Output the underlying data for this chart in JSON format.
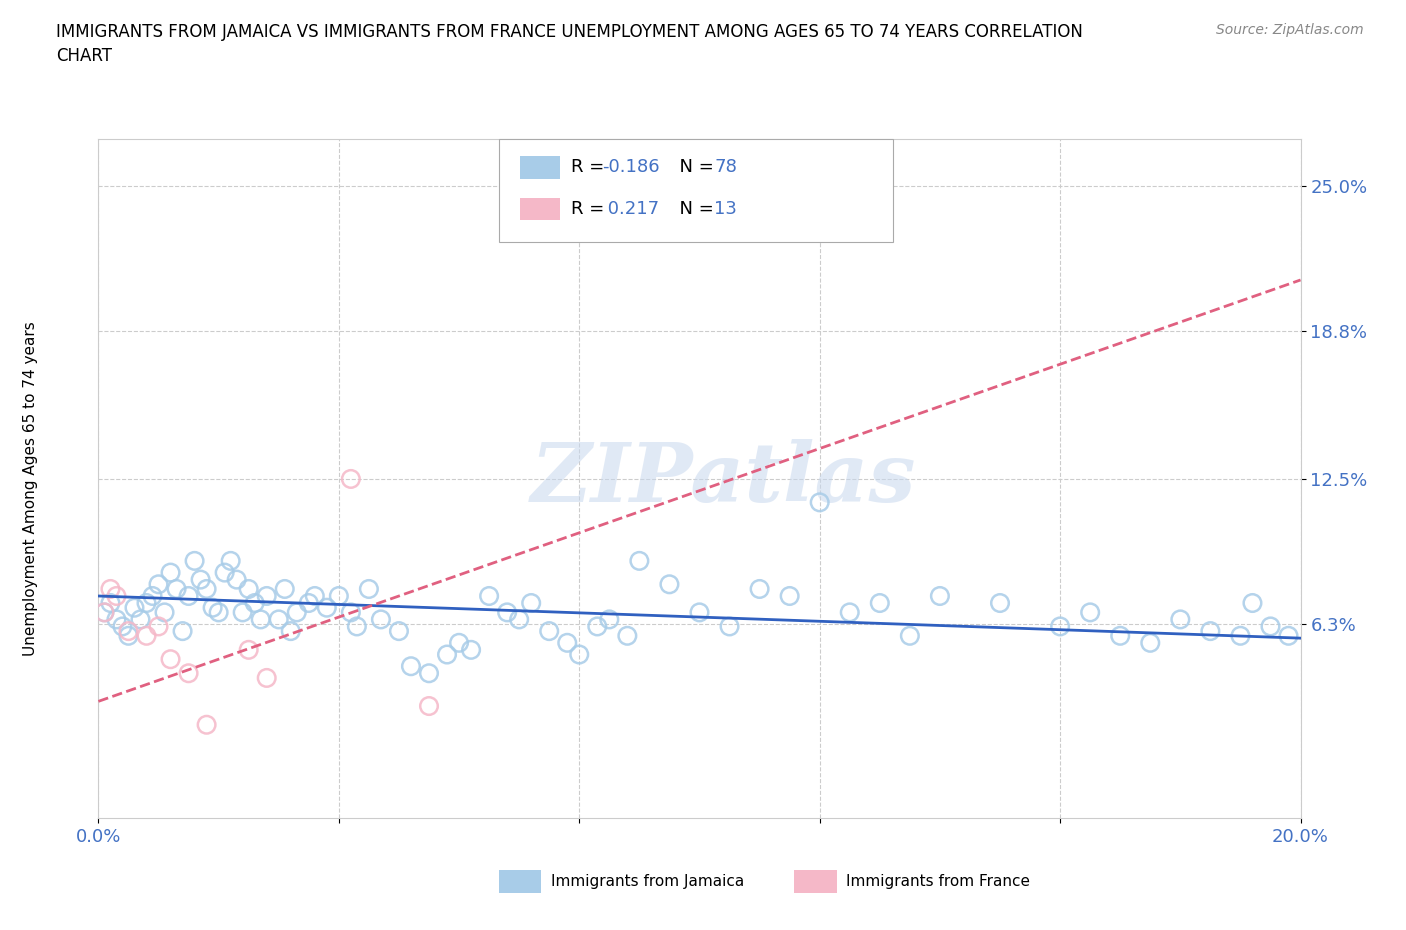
{
  "title": "IMMIGRANTS FROM JAMAICA VS IMMIGRANTS FROM FRANCE UNEMPLOYMENT AMONG AGES 65 TO 74 YEARS CORRELATION\nCHART",
  "source": "Source: ZipAtlas.com",
  "ylabel": "Unemployment Among Ages 65 to 74 years",
  "xlim": [
    0.0,
    0.2
  ],
  "ylim": [
    -0.02,
    0.27
  ],
  "xticks": [
    0.0,
    0.04,
    0.08,
    0.12,
    0.16,
    0.2
  ],
  "xtick_labels": [
    "0.0%",
    "",
    "",
    "",
    "",
    "20.0%"
  ],
  "ytick_labels": [
    "6.3%",
    "12.5%",
    "18.8%",
    "25.0%"
  ],
  "ytick_vals": [
    0.063,
    0.125,
    0.188,
    0.25
  ],
  "jamaica_color": "#a8cce8",
  "france_color": "#f5b8c8",
  "jamaica_line_color": "#3060c0",
  "france_line_color": "#e06080",
  "R_jamaica": -0.186,
  "N_jamaica": 78,
  "R_france": 0.217,
  "N_france": 13,
  "jamaica_line_y0": 0.075,
  "jamaica_line_y1": 0.057,
  "france_line_y0": 0.03,
  "france_line_y1": 0.21,
  "jamaica_scatter_x": [
    0.001,
    0.002,
    0.003,
    0.004,
    0.005,
    0.006,
    0.007,
    0.008,
    0.009,
    0.01,
    0.011,
    0.012,
    0.013,
    0.014,
    0.015,
    0.016,
    0.017,
    0.018,
    0.019,
    0.02,
    0.021,
    0.022,
    0.023,
    0.024,
    0.025,
    0.026,
    0.027,
    0.028,
    0.03,
    0.031,
    0.032,
    0.033,
    0.035,
    0.036,
    0.038,
    0.04,
    0.042,
    0.043,
    0.045,
    0.047,
    0.05,
    0.052,
    0.055,
    0.058,
    0.06,
    0.062,
    0.065,
    0.068,
    0.07,
    0.072,
    0.075,
    0.078,
    0.08,
    0.083,
    0.085,
    0.088,
    0.09,
    0.095,
    0.1,
    0.105,
    0.11,
    0.115,
    0.12,
    0.125,
    0.13,
    0.135,
    0.14,
    0.15,
    0.16,
    0.165,
    0.17,
    0.175,
    0.18,
    0.185,
    0.19,
    0.192,
    0.195,
    0.198
  ],
  "jamaica_scatter_y": [
    0.068,
    0.072,
    0.065,
    0.062,
    0.058,
    0.07,
    0.065,
    0.072,
    0.075,
    0.08,
    0.068,
    0.085,
    0.078,
    0.06,
    0.075,
    0.09,
    0.082,
    0.078,
    0.07,
    0.068,
    0.085,
    0.09,
    0.082,
    0.068,
    0.078,
    0.072,
    0.065,
    0.075,
    0.065,
    0.078,
    0.06,
    0.068,
    0.072,
    0.075,
    0.07,
    0.075,
    0.068,
    0.062,
    0.078,
    0.065,
    0.06,
    0.045,
    0.042,
    0.05,
    0.055,
    0.052,
    0.075,
    0.068,
    0.065,
    0.072,
    0.06,
    0.055,
    0.05,
    0.062,
    0.065,
    0.058,
    0.09,
    0.08,
    0.068,
    0.062,
    0.078,
    0.075,
    0.115,
    0.068,
    0.072,
    0.058,
    0.075,
    0.072,
    0.062,
    0.068,
    0.058,
    0.055,
    0.065,
    0.06,
    0.058,
    0.072,
    0.062,
    0.058
  ],
  "france_scatter_x": [
    0.001,
    0.002,
    0.003,
    0.005,
    0.008,
    0.01,
    0.012,
    0.015,
    0.018,
    0.025,
    0.028,
    0.042,
    0.055
  ],
  "france_scatter_y": [
    0.068,
    0.078,
    0.075,
    0.06,
    0.058,
    0.062,
    0.048,
    0.042,
    0.02,
    0.052,
    0.04,
    0.125,
    0.028
  ]
}
